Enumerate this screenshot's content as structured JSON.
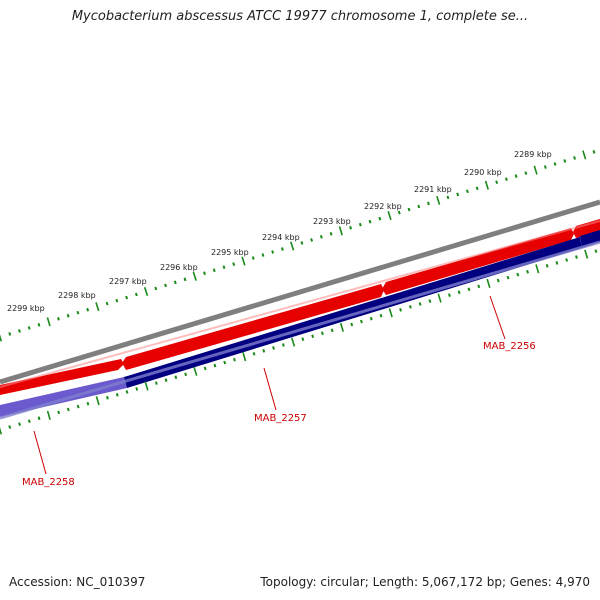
{
  "title": "Mycobacterium abscessus ATCC 19977 chromosome 1, complete se...",
  "footer": {
    "accession": "Accession: NC_010397",
    "summary": "Topology: circular; Length: 5,067,172 bp; Genes: 4,970"
  },
  "ruler": {
    "tick_labels": [
      "2289 kbp",
      "2290 kbp",
      "2291 kbp",
      "2292 kbp",
      "2293 kbp",
      "2294 kbp",
      "2295 kbp",
      "2296 kbp",
      "2297 kbp",
      "2298 kbp",
      "2299 kbp"
    ],
    "tick_color": "#1a8a1a"
  },
  "genes": [
    {
      "label": "MAB_2256",
      "strand": "forward",
      "color": "#e60000"
    },
    {
      "label": "MAB_2257",
      "strand": "reverse",
      "color": "#000080"
    },
    {
      "label": "MAB_2258",
      "strand": "reverse",
      "color": "#6a5acd"
    }
  ],
  "colors": {
    "backbone": "#7f7f7f",
    "forward_gene": "#e60000",
    "reverse_gene": "#000080",
    "reverse_gene_light": "#6a5acd",
    "gene_label": "#cc0000",
    "ruler_tick": "#1a8a1a"
  }
}
